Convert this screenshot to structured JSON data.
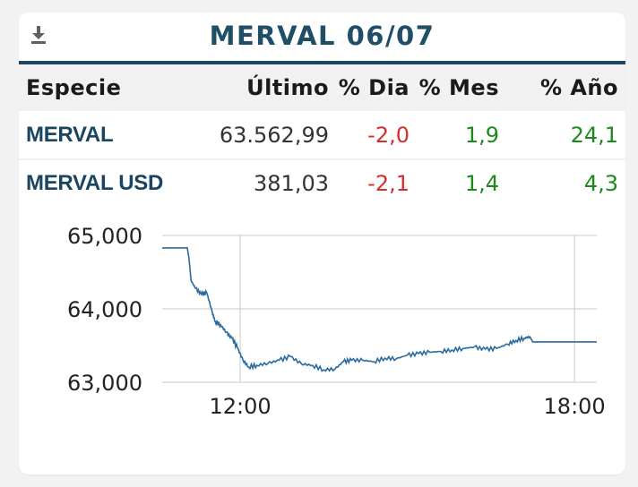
{
  "header": {
    "title": "MERVAL 06/07",
    "download_icon": "download-icon"
  },
  "table": {
    "columns": [
      "Especie",
      "Último",
      "% Dia",
      "% Mes",
      "% Año"
    ],
    "rows": [
      {
        "especie": "MERVAL",
        "ultimo": "63.562,99",
        "dia": "-2,0",
        "mes": "1,9",
        "anio": "24,1"
      },
      {
        "especie": "MERVAL USD",
        "ultimo": "381,03",
        "dia": "-2,1",
        "mes": "1,4",
        "anio": "4,3"
      }
    ]
  },
  "colors": {
    "accent": "#1c4860",
    "negative": "#d32f2f",
    "positive": "#1b8a1b",
    "line": "#2a6a9e"
  },
  "chart_data": {
    "type": "line",
    "title": "",
    "xlabel": "",
    "ylabel": "",
    "ylim": [
      63000,
      65000
    ],
    "y_ticks": [
      63000,
      64000,
      65000
    ],
    "y_tick_labels": [
      "63,000",
      "64,000",
      "65,000"
    ],
    "x_ticks": [
      12,
      18
    ],
    "x_tick_labels": [
      "12:00",
      "18:00"
    ],
    "xlim": [
      10.6,
      18.4
    ],
    "grid": true,
    "series": [
      {
        "x": [
          10.6,
          11.05,
          11.08,
          11.12,
          11.2,
          11.3,
          11.4,
          11.5,
          11.55,
          11.65,
          11.75,
          11.85,
          11.95,
          12.05,
          12.15,
          12.3,
          12.5,
          12.7,
          12.9,
          13.1,
          13.3,
          13.5,
          13.7,
          13.85,
          14.0,
          14.2,
          14.4,
          14.6,
          14.8,
          15.0,
          15.2,
          15.4,
          15.6,
          15.8,
          16.0,
          16.2,
          16.4,
          16.6,
          16.8,
          16.95,
          17.1,
          17.2,
          17.25,
          18.45
        ],
        "values": [
          64830,
          64830,
          64700,
          64380,
          64280,
          64200,
          64220,
          63950,
          63830,
          63780,
          63680,
          63600,
          63470,
          63300,
          63210,
          63230,
          63260,
          63300,
          63350,
          63250,
          63230,
          63170,
          63180,
          63280,
          63300,
          63300,
          63280,
          63330,
          63320,
          63370,
          63390,
          63410,
          63420,
          63440,
          63460,
          63480,
          63450,
          63460,
          63520,
          63570,
          63600,
          63620,
          63550,
          63550
        ]
      }
    ]
  }
}
